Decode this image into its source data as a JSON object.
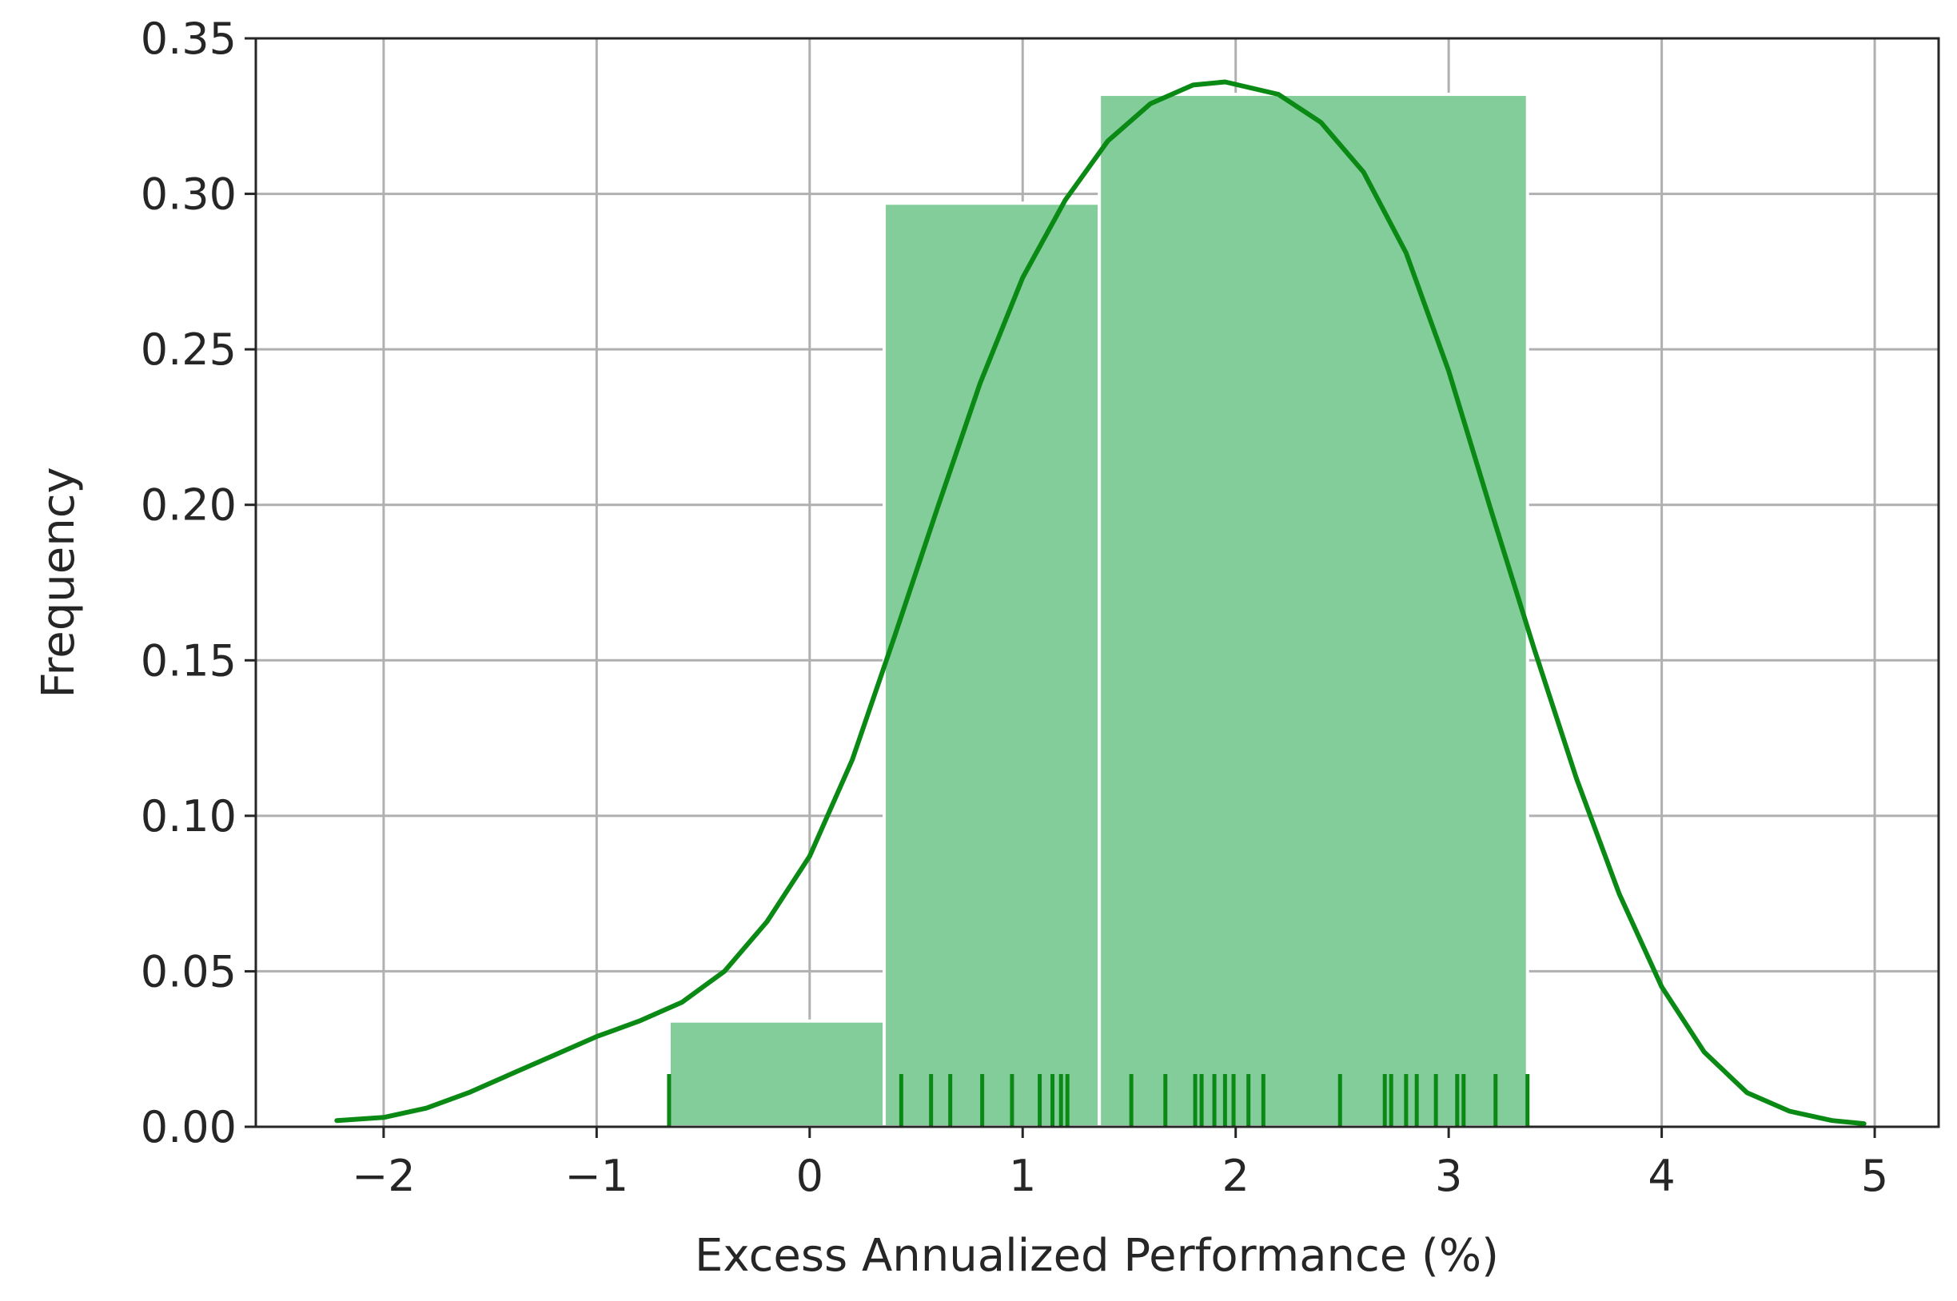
{
  "chart_data": {
    "type": "histogram",
    "title": "",
    "xlabel": "Excess Annualized Performance (%)",
    "ylabel": "Frequency",
    "xlim": [
      -2.6,
      5.3
    ],
    "ylim": [
      0,
      0.35
    ],
    "x_ticks": [
      -2,
      -1,
      0,
      1,
      2,
      3,
      4,
      5
    ],
    "x_tick_labels": [
      "−2",
      "−1",
      "0",
      "1",
      "2",
      "3",
      "4",
      "5"
    ],
    "y_ticks": [
      0.0,
      0.05,
      0.1,
      0.15,
      0.2,
      0.25,
      0.3,
      0.35
    ],
    "y_tick_labels": [
      "0.00",
      "0.05",
      "0.10",
      "0.15",
      "0.20",
      "0.25",
      "0.30",
      "0.35"
    ],
    "grid": true,
    "histogram": {
      "color": "#82cd9a",
      "bins": [
        {
          "x0": -0.66,
          "x1": 0.35,
          "value": 0.034
        },
        {
          "x0": 0.35,
          "x1": 1.36,
          "value": 0.297
        },
        {
          "x0": 1.36,
          "x1": 3.37,
          "value": 0.332
        }
      ]
    },
    "kde": {
      "color": "#0a8a14",
      "points": [
        [
          -2.22,
          0.002
        ],
        [
          -2.0,
          0.003
        ],
        [
          -1.8,
          0.006
        ],
        [
          -1.6,
          0.011
        ],
        [
          -1.4,
          0.017
        ],
        [
          -1.2,
          0.023
        ],
        [
          -1.0,
          0.029
        ],
        [
          -0.8,
          0.034
        ],
        [
          -0.6,
          0.04
        ],
        [
          -0.4,
          0.05
        ],
        [
          -0.2,
          0.066
        ],
        [
          0.0,
          0.087
        ],
        [
          0.2,
          0.118
        ],
        [
          0.4,
          0.158
        ],
        [
          0.6,
          0.199
        ],
        [
          0.8,
          0.239
        ],
        [
          1.0,
          0.273
        ],
        [
          1.2,
          0.298
        ],
        [
          1.4,
          0.317
        ],
        [
          1.6,
          0.329
        ],
        [
          1.8,
          0.335
        ],
        [
          1.95,
          0.336
        ],
        [
          2.2,
          0.332
        ],
        [
          2.4,
          0.323
        ],
        [
          2.6,
          0.307
        ],
        [
          2.8,
          0.281
        ],
        [
          3.0,
          0.243
        ],
        [
          3.2,
          0.198
        ],
        [
          3.4,
          0.154
        ],
        [
          3.6,
          0.112
        ],
        [
          3.8,
          0.075
        ],
        [
          4.0,
          0.045
        ],
        [
          4.2,
          0.024
        ],
        [
          4.4,
          0.011
        ],
        [
          4.6,
          0.005
        ],
        [
          4.8,
          0.002
        ],
        [
          4.95,
          0.001
        ]
      ]
    },
    "rug": {
      "color": "#0a8a14",
      "values": [
        -0.66,
        0.43,
        0.57,
        0.66,
        0.81,
        0.95,
        1.08,
        1.14,
        1.18,
        1.21,
        1.51,
        1.67,
        1.81,
        1.84,
        1.9,
        1.95,
        1.99,
        2.06,
        2.13,
        2.49,
        2.7,
        2.73,
        2.8,
        2.85,
        2.94,
        3.04,
        3.07,
        3.22,
        3.37
      ]
    }
  }
}
